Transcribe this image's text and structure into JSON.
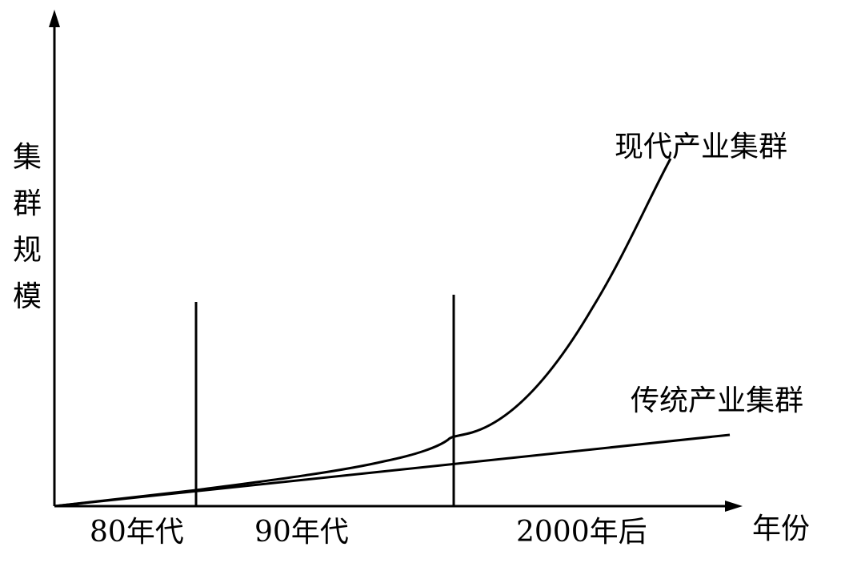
{
  "ylabel_chars": [
    "集",
    "群",
    "规",
    "模"
  ],
  "xlabel": "年份",
  "eras": [
    "80年代",
    "90年代",
    "2000年后"
  ],
  "curves": {
    "modern": "现代产业集群",
    "traditional": "传统产业集群"
  }
}
